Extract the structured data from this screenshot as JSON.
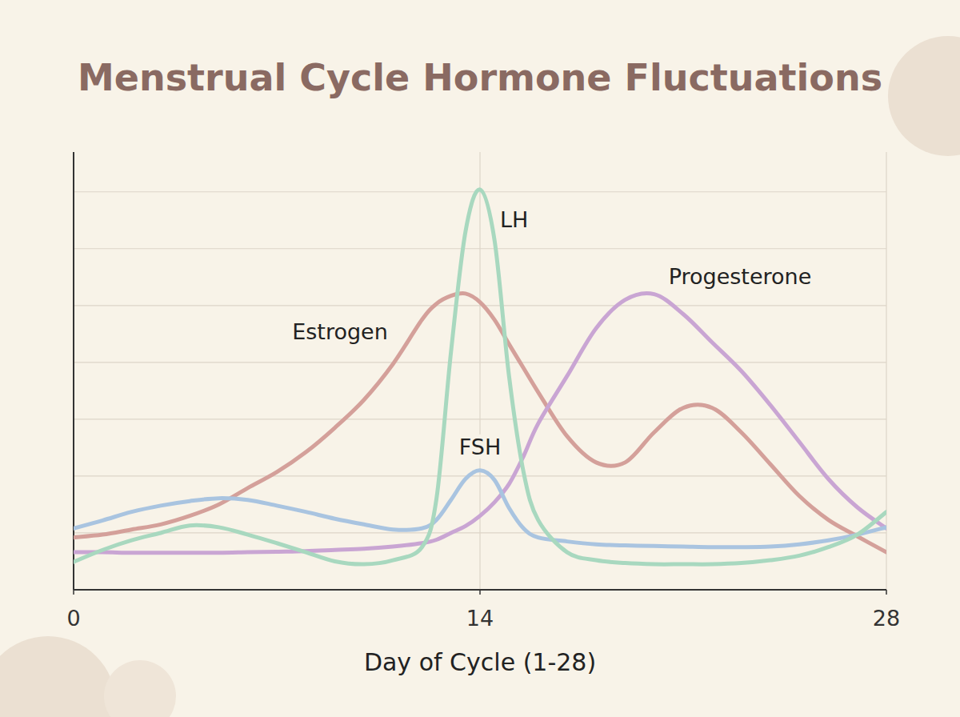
{
  "chart_data": {
    "type": "line",
    "title": "Menstrual Cycle Hormone Fluctuations",
    "x_label": "Day of Cycle (1-28)",
    "x": [
      0,
      1,
      2,
      3,
      4,
      5,
      6,
      7,
      8,
      9,
      10,
      11,
      12,
      12.5,
      13,
      13.5,
      14,
      14.5,
      15,
      15.5,
      16,
      17,
      18,
      19,
      20,
      21,
      22,
      23,
      24,
      25,
      26,
      27,
      28
    ],
    "series": [
      {
        "name": "Estrogen",
        "color": "#d4a09a",
        "values": [
          0.92,
          0.97,
          1.06,
          1.15,
          1.3,
          1.5,
          1.79,
          2.07,
          2.42,
          2.85,
          3.34,
          3.97,
          4.75,
          5.03,
          5.17,
          5.21,
          5.06,
          4.75,
          4.32,
          3.9,
          3.48,
          2.7,
          2.24,
          2.24,
          2.77,
          3.2,
          3.2,
          2.77,
          2.21,
          1.65,
          1.23,
          0.94,
          0.66
        ]
      },
      {
        "name": "Progesterone",
        "color": "#c9a5d3",
        "values": [
          0.66,
          0.66,
          0.65,
          0.65,
          0.65,
          0.65,
          0.66,
          0.67,
          0.68,
          0.7,
          0.72,
          0.76,
          0.82,
          0.88,
          1.0,
          1.12,
          1.3,
          1.54,
          1.86,
          2.35,
          2.92,
          3.76,
          4.6,
          5.1,
          5.2,
          4.85,
          4.35,
          3.85,
          3.25,
          2.6,
          1.95,
          1.45,
          1.08
        ]
      },
      {
        "name": "FSH",
        "color": "#a9c4e0",
        "values": [
          1.08,
          1.22,
          1.37,
          1.48,
          1.56,
          1.61,
          1.58,
          1.48,
          1.37,
          1.25,
          1.15,
          1.06,
          1.08,
          1.23,
          1.58,
          1.95,
          2.1,
          1.93,
          1.44,
          1.08,
          0.92,
          0.85,
          0.8,
          0.78,
          0.77,
          0.76,
          0.75,
          0.75,
          0.76,
          0.8,
          0.87,
          0.97,
          1.1
        ]
      },
      {
        "name": "LH",
        "color": "#a8d8bf",
        "values": [
          0.49,
          0.7,
          0.87,
          1.0,
          1.13,
          1.1,
          0.97,
          0.82,
          0.66,
          0.5,
          0.45,
          0.52,
          0.75,
          1.6,
          4.18,
          6.3,
          7.04,
          6.15,
          3.76,
          2.07,
          1.23,
          0.66,
          0.52,
          0.47,
          0.45,
          0.45,
          0.45,
          0.47,
          0.52,
          0.6,
          0.75,
          0.97,
          1.37
        ]
      }
    ],
    "xlim": [
      0,
      28
    ],
    "xticks": [
      0,
      14,
      28
    ],
    "ylim": [
      0,
      7.7
    ],
    "yticks": [
      1,
      2,
      3,
      4,
      5,
      6,
      7
    ],
    "grid": true,
    "tick_labels": "x"
  }
}
